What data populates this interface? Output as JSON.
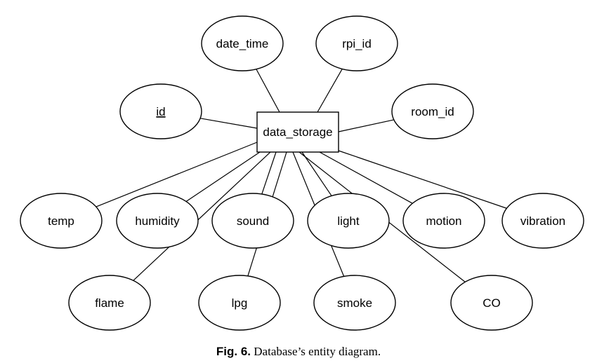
{
  "diagram": {
    "entity": {
      "label": "data_storage"
    },
    "attributes": [
      {
        "key": "date_time",
        "label": "date_time",
        "primary_key": false
      },
      {
        "key": "rpi_id",
        "label": "rpi_id",
        "primary_key": false
      },
      {
        "key": "id",
        "label": "id",
        "primary_key": true
      },
      {
        "key": "room_id",
        "label": "room_id",
        "primary_key": false
      },
      {
        "key": "temp",
        "label": "temp",
        "primary_key": false
      },
      {
        "key": "humidity",
        "label": "humidity",
        "primary_key": false
      },
      {
        "key": "sound",
        "label": "sound",
        "primary_key": false
      },
      {
        "key": "light",
        "label": "light",
        "primary_key": false
      },
      {
        "key": "motion",
        "label": "motion",
        "primary_key": false
      },
      {
        "key": "vibration",
        "label": "vibration",
        "primary_key": false
      },
      {
        "key": "flame",
        "label": "flame",
        "primary_key": false
      },
      {
        "key": "lpg",
        "label": "lpg",
        "primary_key": false
      },
      {
        "key": "smoke",
        "label": "smoke",
        "primary_key": false
      },
      {
        "key": "co",
        "label": "CO",
        "primary_key": false
      }
    ]
  },
  "caption": {
    "label": "Fig. 6.",
    "text": "Database’s entity diagram."
  },
  "colors": {
    "stroke": "#000000",
    "fill": "#ffffff"
  }
}
